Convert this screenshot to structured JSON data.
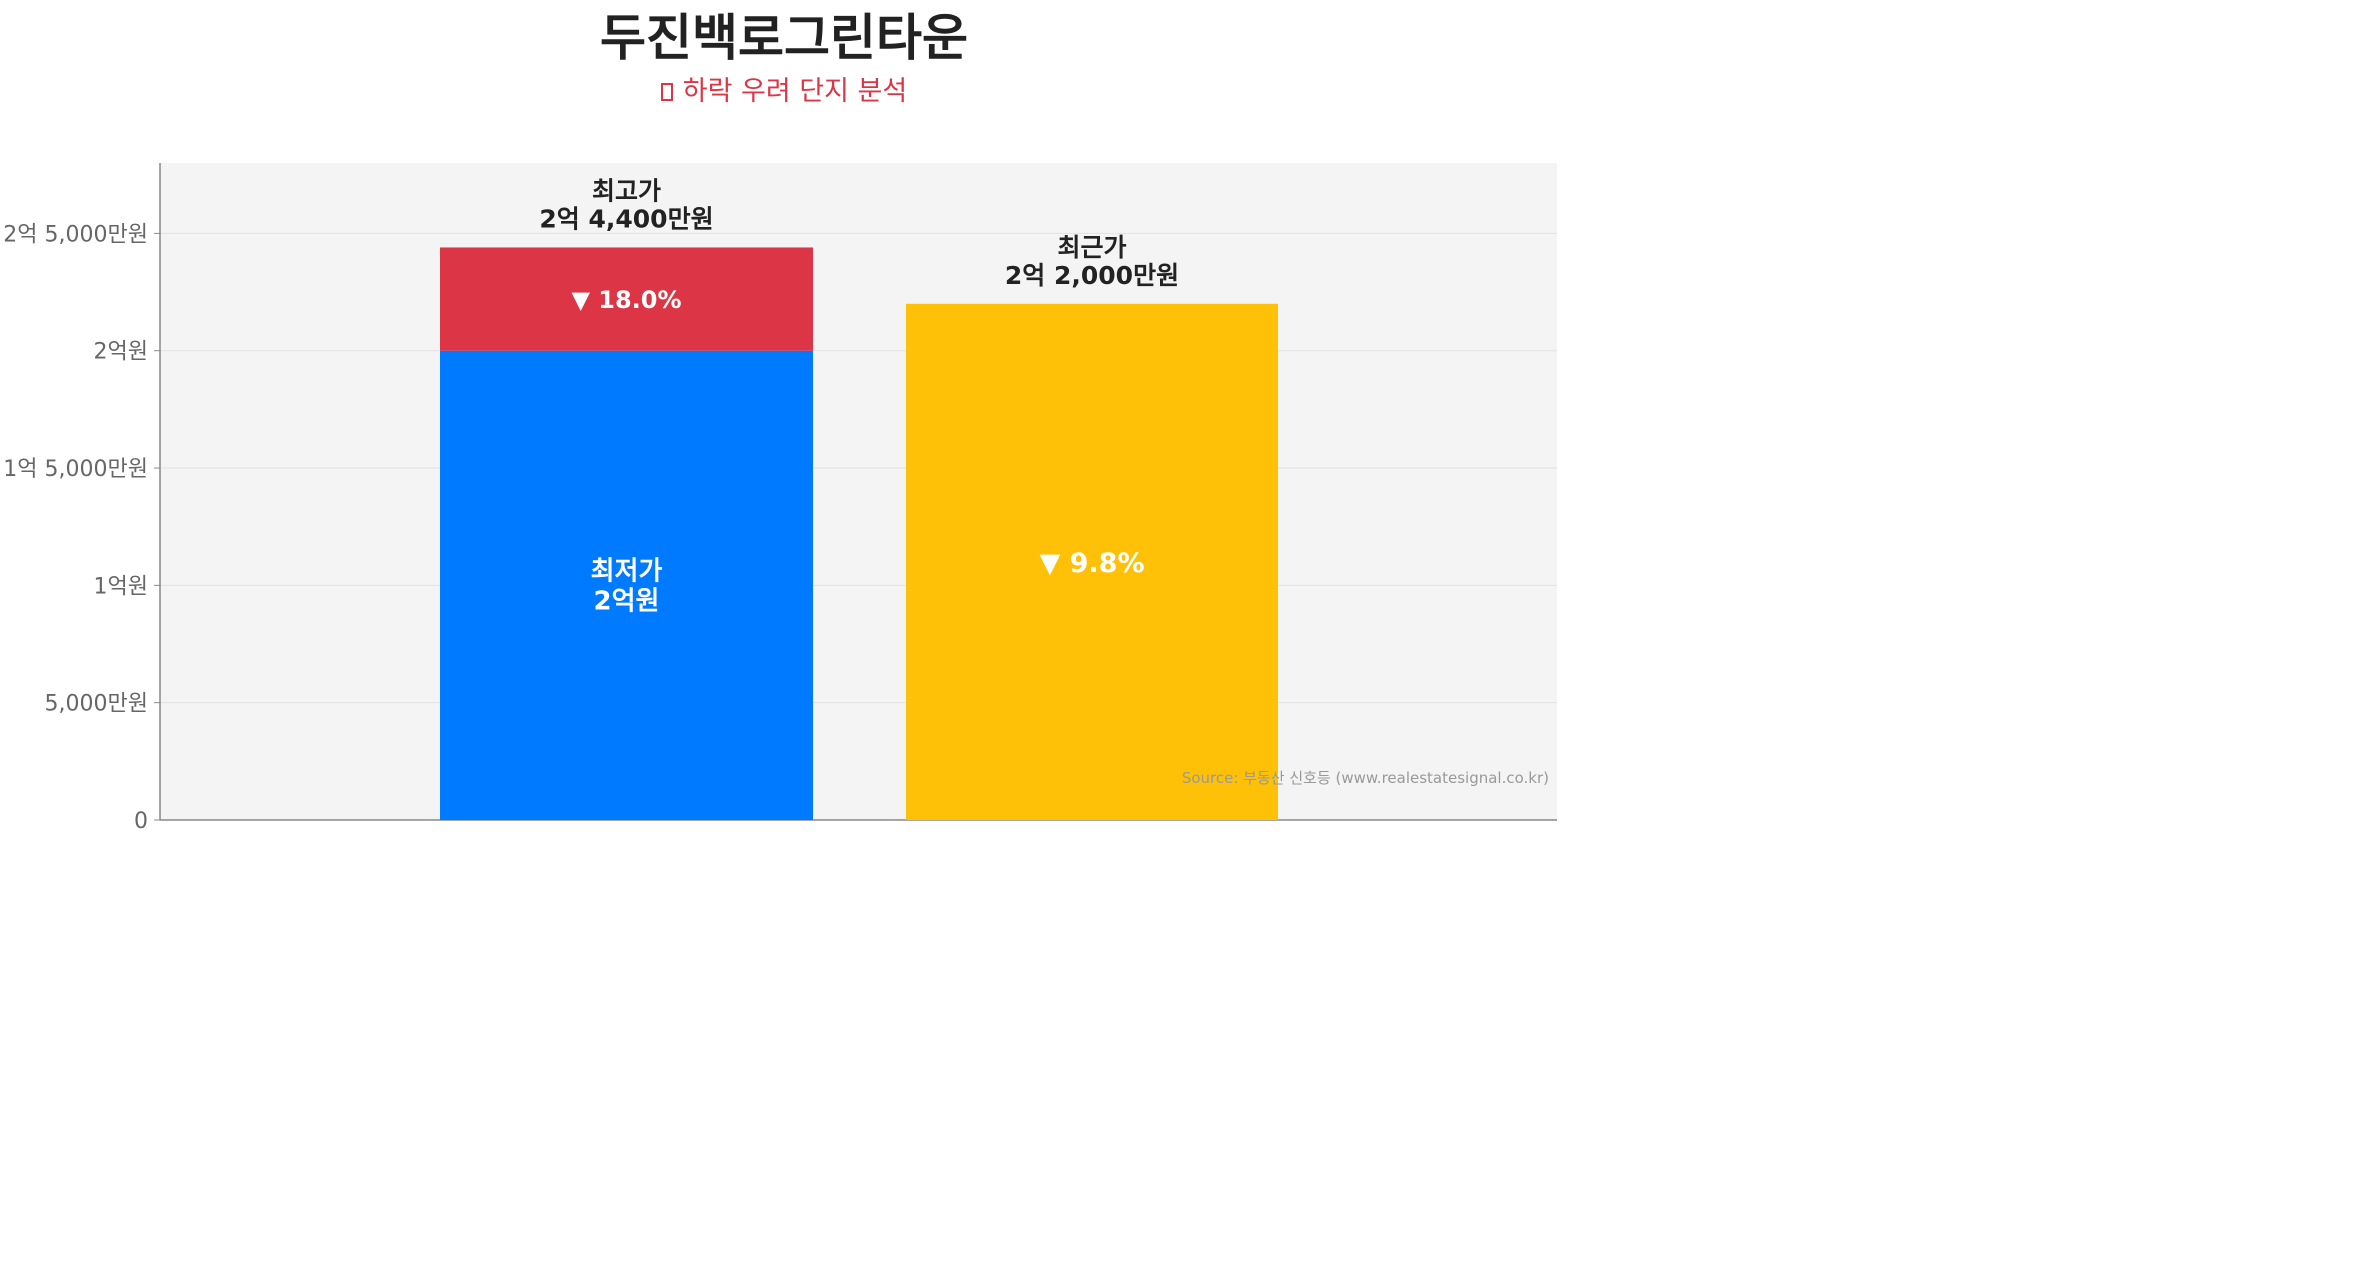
{
  "title": "두진백로그린타운",
  "subtitle": "하락 우려 단지 분석",
  "subtitle_icon": "warning-emoji-icon",
  "source": "Source: 부동산 신호등 (www.realestatesignal.co.kr)",
  "colors": {
    "min_bar": "#007bff",
    "drop_segment": "#dc3545",
    "recent_bar": "#ffc107",
    "plot_bg": "#f4f4f4",
    "title": "#222222",
    "subtitle": "#dc3545"
  },
  "chart_data": {
    "type": "bar",
    "stacked": true,
    "unit": "만원",
    "ylim": [
      0,
      28000
    ],
    "yticks": [
      {
        "value": 0,
        "label": "0"
      },
      {
        "value": 5000,
        "label": "5,000만원"
      },
      {
        "value": 10000,
        "label": "1억원"
      },
      {
        "value": 15000,
        "label": "1억 5,000만원"
      },
      {
        "value": 20000,
        "label": "2억원"
      },
      {
        "value": 25000,
        "label": "2억 5,000만원"
      }
    ],
    "grid": true,
    "bars": [
      {
        "key": "max",
        "label": "최고가",
        "value": 24400,
        "value_label": "2억 4,400만원",
        "base": {
          "label": "최저가",
          "value": 20000,
          "value_label": "2억원"
        },
        "drop_label": "▼ 18.0%"
      },
      {
        "key": "recent",
        "label": "최근가",
        "value": 22000,
        "value_label": "2억 2,000만원",
        "drop_label": "▼ 9.8%"
      }
    ]
  }
}
